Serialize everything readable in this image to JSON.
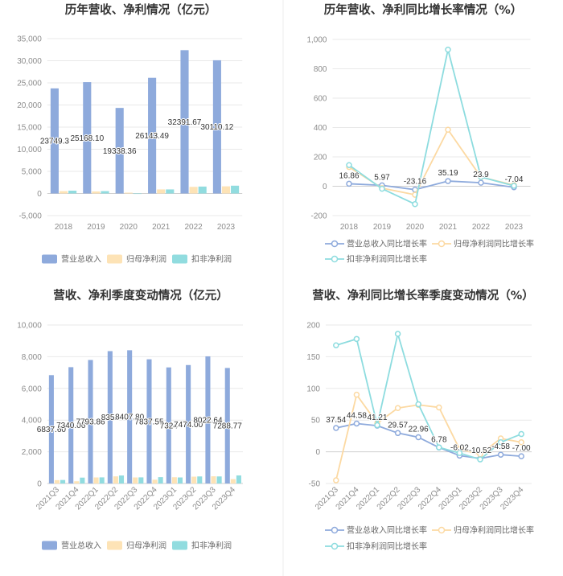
{
  "chart_data": [
    {
      "type": "bar",
      "title": "历年营收、净利情况（亿元）",
      "categories": [
        "2018",
        "2019",
        "2020",
        "2021",
        "2022",
        "2023"
      ],
      "ylim": [
        -5000,
        35000
      ],
      "yticks": [
        -5000,
        0,
        5000,
        10000,
        15000,
        20000,
        25000,
        30000,
        35000
      ],
      "ytick_labels": [
        "-5,000",
        "0",
        "5,000",
        "10,000",
        "15,000",
        "20,000",
        "25,000",
        "30,000",
        "35,000"
      ],
      "grid": true,
      "legend": "bottom-left",
      "series": [
        {
          "name": "营业总收入",
          "color": "#8eaadc",
          "values": [
            23749.3,
            25168.1,
            19338.36,
            26143.49,
            32391.67,
            30110.12
          ],
          "labels": [
            "23749.3",
            "25168.10",
            "19338.36",
            "26143.49",
            "32391.67",
            "30110.12"
          ]
        },
        {
          "name": "归母净利润",
          "color": "#fde3b6",
          "values": [
            526,
            457,
            190,
            922,
            1494,
            1611
          ]
        },
        {
          "name": "扣非净利润",
          "color": "#91dcdf",
          "values": [
            630,
            530,
            -110,
            920,
            1560,
            1760
          ]
        }
      ]
    },
    {
      "type": "line",
      "title": "历年营收、净利同比增长率情况（%）",
      "categories": [
        "2018",
        "2019",
        "2020",
        "2021",
        "2022",
        "2023"
      ],
      "ylim": [
        -200,
        1000
      ],
      "yticks": [
        -200,
        0,
        200,
        400,
        600,
        800,
        1000
      ],
      "ytick_labels": [
        "-200",
        "0",
        "200",
        "400",
        "600",
        "800",
        "1,000"
      ],
      "grid": true,
      "legend": "bottom-left",
      "series": [
        {
          "name": "营业总收入同比增长率",
          "color": "#8eaadc",
          "values": [
            16.86,
            5.97,
            -23.16,
            35.19,
            23.9,
            -7.04
          ],
          "labels": [
            "16.86",
            "5.97",
            "-23.16",
            "35.19",
            "23.9",
            "-7.04"
          ]
        },
        {
          "name": "归母净利润同比增长率",
          "color": "#fcd9a2",
          "values": [
            131,
            -13,
            -58,
            385,
            62,
            8
          ]
        },
        {
          "name": "扣非净利润同比增长率",
          "color": "#8ddcdf",
          "values": [
            144,
            -17,
            -122,
            930,
            63,
            3
          ]
        }
      ]
    },
    {
      "type": "bar",
      "title": "营收、净利季度变动情况（亿元）",
      "categories": [
        "2021Q3",
        "2021Q4",
        "2022Q1",
        "2022Q2",
        "2022Q3",
        "2022Q4",
        "2023Q1",
        "2023Q2",
        "2023Q3",
        "2023Q4"
      ],
      "ylim": [
        0,
        10000
      ],
      "yticks": [
        0,
        2000,
        4000,
        6000,
        8000,
        10000
      ],
      "ytick_labels": [
        "0",
        "2,000",
        "4,000",
        "6,000",
        "8,000",
        "10,000"
      ],
      "grid": true,
      "legend": "bottom-left",
      "series": [
        {
          "name": "营业总收入",
          "color": "#8eaadc",
          "values": [
            6837.6,
            7340.06,
            7793.86,
            8352,
            8407.8,
            7837.55,
            7324,
            7474,
            8022.64,
            7288.77
          ],
          "labels": [
            "6837.60",
            "7340.06",
            "7793.86",
            "8352",
            "8407.80",
            "7837.55",
            "7324",
            "7474.00",
            "8022.64",
            "7288.77"
          ]
        },
        {
          "name": "归母净利润",
          "color": "#fde3b6",
          "values": [
            210,
            140,
            380,
            450,
            380,
            240,
            395,
            430,
            455,
            275
          ]
        },
        {
          "name": "扣非净利润",
          "color": "#91dcdf",
          "values": [
            220,
            370,
            385,
            505,
            385,
            400,
            380,
            445,
            445,
            510
          ]
        }
      ]
    },
    {
      "type": "line",
      "title": "营收、净利同比增长率季度变动情况（%）",
      "categories": [
        "2021Q3",
        "2021Q4",
        "2022Q1",
        "2022Q2",
        "2022Q3",
        "2022Q4",
        "2023Q1",
        "2023Q2",
        "2023Q3",
        "2023Q4"
      ],
      "ylim": [
        -50,
        200
      ],
      "yticks": [
        -50,
        0,
        50,
        100,
        150,
        200
      ],
      "ytick_labels": [
        "-50",
        "0",
        "50",
        "100",
        "150",
        "200"
      ],
      "grid": true,
      "legend": "bottom-left",
      "series": [
        {
          "name": "营业总收入同比增长率",
          "color": "#8eaadc",
          "values": [
            37.54,
            44.58,
            41.21,
            29.57,
            22.96,
            6.78,
            -6.02,
            -10.52,
            -4.58,
            -7.0
          ],
          "labels": [
            "37.54",
            "44.58",
            "41.21",
            "29.57",
            "22.96",
            "6.78",
            "-6.02",
            "-10.52",
            "-4.58",
            "-7.00"
          ]
        },
        {
          "name": "归母净利润同比增长率",
          "color": "#fcd9a2",
          "values": [
            -45,
            90,
            45,
            69,
            74,
            70,
            4,
            -4,
            21,
            15
          ]
        },
        {
          "name": "扣非净利润同比增长率",
          "color": "#8ddcdf",
          "values": [
            168,
            178,
            42,
            186,
            75,
            7,
            -2,
            -12,
            15,
            28
          ]
        }
      ]
    }
  ]
}
